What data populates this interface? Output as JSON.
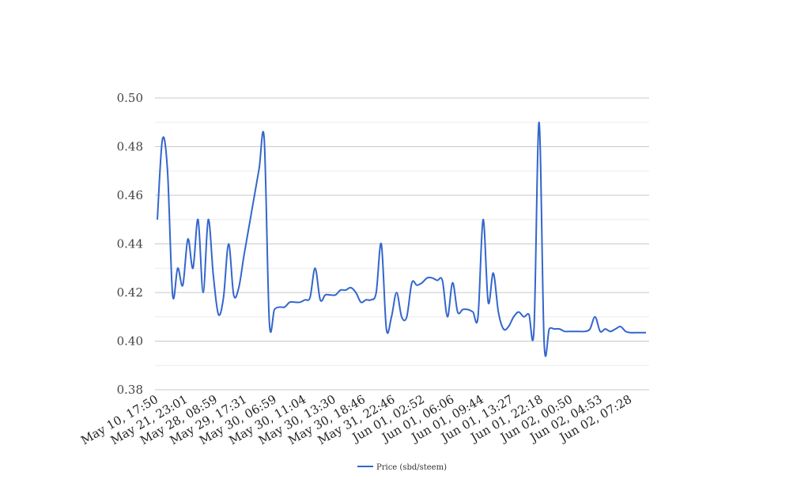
{
  "chart_data": {
    "type": "line",
    "title": "",
    "xlabel": "",
    "ylabel": "",
    "ylim": [
      0.38,
      0.5
    ],
    "yticks": [
      "0.38",
      "0.40",
      "0.42",
      "0.44",
      "0.46",
      "0.48",
      "0.50"
    ],
    "grid": true,
    "legend_position": "bottom-center",
    "colors": {
      "line": "#3366cc",
      "grid_major": "#c8c8c8",
      "grid_minor": "#ebebeb",
      "tick_text": "#444444"
    },
    "xtick_labels": [
      "May 10, 17:50",
      "May 21, 23:01",
      "May 28, 08:59",
      "May 29, 17:31",
      "May 30, 06:59",
      "May 30, 11:04",
      "May 30, 13:30",
      "May 30, 18:46",
      "May 31, 22:46",
      "Jun 01, 02:52",
      "Jun 01, 06:06",
      "Jun 01, 09:44",
      "Jun 01, 13:27",
      "Jun 01, 22:18",
      "Jun 02, 00:50",
      "Jun 02, 04:53",
      "Jun 02, 07:28"
    ],
    "series": [
      {
        "name": "Price (sbd/steem)",
        "values": [
          0.45,
          0.483,
          0.47,
          0.419,
          0.43,
          0.423,
          0.442,
          0.43,
          0.45,
          0.42,
          0.45,
          0.427,
          0.411,
          0.418,
          0.44,
          0.419,
          0.422,
          0.435,
          0.447,
          0.459,
          0.471,
          0.483,
          0.408,
          0.413,
          0.414,
          0.414,
          0.416,
          0.416,
          0.416,
          0.417,
          0.418,
          0.43,
          0.417,
          0.419,
          0.419,
          0.419,
          0.421,
          0.421,
          0.422,
          0.42,
          0.416,
          0.417,
          0.417,
          0.42,
          0.44,
          0.405,
          0.41,
          0.42,
          0.41,
          0.41,
          0.424,
          0.423,
          0.424,
          0.426,
          0.426,
          0.425,
          0.425,
          0.41,
          0.424,
          0.412,
          0.413,
          0.413,
          0.412,
          0.41,
          0.45,
          0.416,
          0.428,
          0.412,
          0.405,
          0.406,
          0.41,
          0.412,
          0.41,
          0.411,
          0.405,
          0.49,
          0.399,
          0.405,
          0.405,
          0.405,
          0.404,
          0.404,
          0.404,
          0.404,
          0.404,
          0.405,
          0.41,
          0.404,
          0.405,
          0.404,
          0.405,
          0.406,
          0.404,
          0.4035,
          0.4035,
          0.4035,
          0.4035
        ]
      }
    ]
  }
}
